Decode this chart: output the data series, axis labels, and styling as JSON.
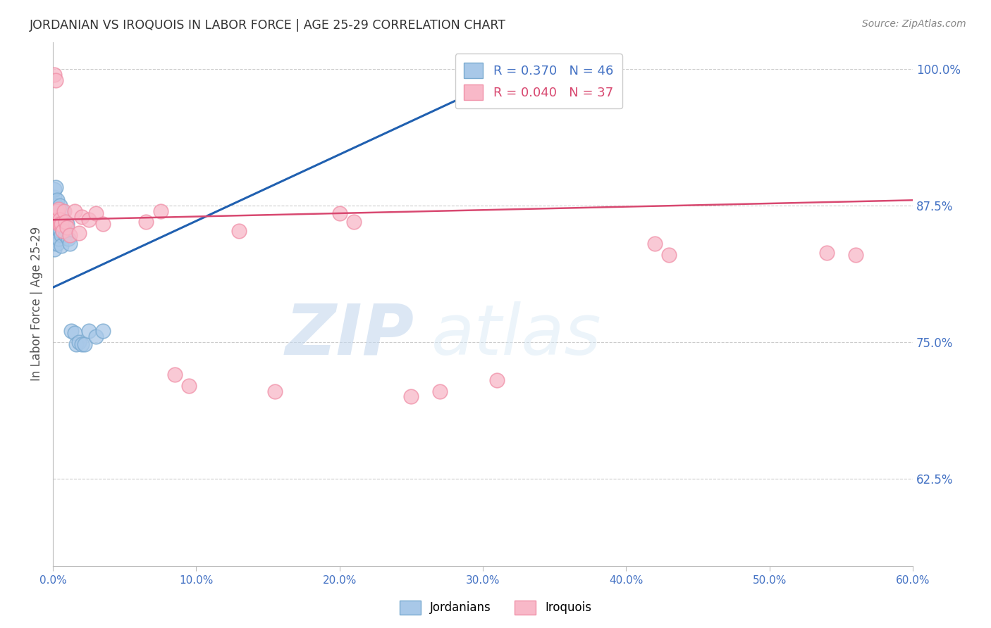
{
  "title": "JORDANIAN VS IROQUOIS IN LABOR FORCE | AGE 25-29 CORRELATION CHART",
  "source": "Source: ZipAtlas.com",
  "ylabel": "In Labor Force | Age 25-29",
  "xlim": [
    0.0,
    0.6
  ],
  "ylim": [
    0.545,
    1.025
  ],
  "xticks": [
    0.0,
    0.1,
    0.2,
    0.3,
    0.4,
    0.5,
    0.6
  ],
  "yticks_right": [
    0.625,
    0.75,
    0.875,
    1.0
  ],
  "ytick_labels_right": [
    "62.5%",
    "75.0%",
    "87.5%",
    "100.0%"
  ],
  "xtick_labels": [
    "0.0%",
    "10.0%",
    "20.0%",
    "30.0%",
    "40.0%",
    "50.0%",
    "60.0%"
  ],
  "blue_R": 0.37,
  "blue_N": 46,
  "pink_R": 0.04,
  "pink_N": 37,
  "blue_color": "#A8C8E8",
  "pink_color": "#F8B8C8",
  "blue_edge_color": "#7AAAD0",
  "pink_edge_color": "#F090A8",
  "blue_line_color": "#2060B0",
  "pink_line_color": "#D84870",
  "legend_blue_label": "Jordanians",
  "legend_pink_label": "Iroquois",
  "background_color": "#FFFFFF",
  "grid_color": "#CCCCCC",
  "axis_label_color": "#4472C4",
  "title_color": "#333333",
  "watermark_zip": "ZIP",
  "watermark_atlas": "atlas",
  "blue_scatter_x": [
    0.001,
    0.001,
    0.001,
    0.001,
    0.001,
    0.001,
    0.001,
    0.001,
    0.001,
    0.002,
    0.002,
    0.002,
    0.002,
    0.002,
    0.002,
    0.003,
    0.003,
    0.003,
    0.003,
    0.003,
    0.004,
    0.004,
    0.004,
    0.005,
    0.005,
    0.005,
    0.006,
    0.006,
    0.006,
    0.007,
    0.007,
    0.008,
    0.009,
    0.01,
    0.011,
    0.012,
    0.013,
    0.015,
    0.016,
    0.018,
    0.02,
    0.022,
    0.025,
    0.03,
    0.035,
    0.32
  ],
  "blue_scatter_y": [
    0.87,
    0.878,
    0.862,
    0.855,
    0.845,
    0.883,
    0.89,
    0.84,
    0.835,
    0.892,
    0.875,
    0.868,
    0.855,
    0.848,
    0.862,
    0.88,
    0.87,
    0.86,
    0.85,
    0.84,
    0.865,
    0.855,
    0.845,
    0.875,
    0.862,
    0.852,
    0.86,
    0.848,
    0.838,
    0.87,
    0.858,
    0.855,
    0.848,
    0.858,
    0.845,
    0.84,
    0.76,
    0.758,
    0.748,
    0.75,
    0.748,
    0.748,
    0.76,
    0.755,
    0.76,
    0.99
  ],
  "pink_scatter_x": [
    0.001,
    0.001,
    0.002,
    0.002,
    0.003,
    0.003,
    0.004,
    0.004,
    0.005,
    0.005,
    0.006,
    0.007,
    0.008,
    0.009,
    0.01,
    0.012,
    0.015,
    0.018,
    0.02,
    0.025,
    0.03,
    0.035,
    0.065,
    0.075,
    0.085,
    0.095,
    0.13,
    0.155,
    0.2,
    0.21,
    0.25,
    0.27,
    0.31,
    0.42,
    0.43,
    0.54,
    0.56
  ],
  "pink_scatter_y": [
    0.995,
    0.862,
    0.99,
    0.865,
    0.87,
    0.862,
    0.872,
    0.858,
    0.862,
    0.858,
    0.858,
    0.852,
    0.87,
    0.86,
    0.855,
    0.848,
    0.87,
    0.85,
    0.865,
    0.862,
    0.868,
    0.858,
    0.86,
    0.87,
    0.72,
    0.71,
    0.852,
    0.705,
    0.868,
    0.86,
    0.7,
    0.705,
    0.715,
    0.84,
    0.83,
    0.832,
    0.83
  ],
  "blue_trendline_x": [
    0.0,
    0.32
  ],
  "blue_trendline_y": [
    0.8,
    0.995
  ],
  "pink_trendline_x": [
    0.0,
    0.6
  ],
  "pink_trendline_y": [
    0.862,
    0.88
  ]
}
